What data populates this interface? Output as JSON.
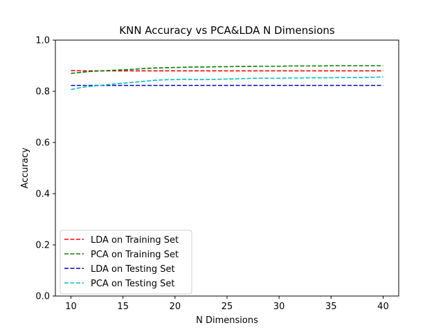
{
  "chart_data": {
    "type": "line",
    "title": "KNN Accuracy vs PCA&LDA N Dimensions",
    "xlabel": "N Dimensions",
    "ylabel": "Accuracy",
    "xlim": [
      8.5,
      41.5
    ],
    "ylim": [
      0.0,
      1.0
    ],
    "xticks": [
      10,
      15,
      20,
      25,
      30,
      35,
      40
    ],
    "xtick_labels": [
      "10",
      "15",
      "20",
      "25",
      "30",
      "35",
      "40"
    ],
    "yticks": [
      0.0,
      0.2,
      0.4,
      0.6,
      0.8,
      1.0
    ],
    "ytick_labels": [
      "0.0",
      "0.2",
      "0.4",
      "0.6",
      "0.8",
      "1.0"
    ],
    "grid": false,
    "legend_position": "lower-left",
    "x": [
      10,
      11,
      12,
      13,
      14,
      15,
      16,
      17,
      18,
      19,
      20,
      21,
      22,
      23,
      24,
      25,
      26,
      27,
      28,
      29,
      30,
      31,
      32,
      33,
      34,
      35,
      36,
      37,
      38,
      39,
      40
    ],
    "series": [
      {
        "name": "LDA on Training Set",
        "color": "#ff0000",
        "values": [
          0.881,
          0.88,
          0.88,
          0.88,
          0.88,
          0.88,
          0.88,
          0.88,
          0.88,
          0.88,
          0.88,
          0.88,
          0.88,
          0.88,
          0.88,
          0.88,
          0.88,
          0.88,
          0.88,
          0.88,
          0.88,
          0.88,
          0.88,
          0.88,
          0.88,
          0.88,
          0.88,
          0.88,
          0.88,
          0.88,
          0.88
        ]
      },
      {
        "name": "PCA on Training Set",
        "color": "#008000",
        "values": [
          0.87,
          0.874,
          0.878,
          0.88,
          0.882,
          0.884,
          0.886,
          0.889,
          0.891,
          0.892,
          0.893,
          0.894,
          0.895,
          0.895,
          0.896,
          0.896,
          0.897,
          0.897,
          0.898,
          0.898,
          0.898,
          0.899,
          0.899,
          0.899,
          0.899,
          0.9,
          0.9,
          0.9,
          0.9,
          0.9,
          0.9
        ]
      },
      {
        "name": "LDA on Testing Set",
        "color": "#0000cc",
        "values": [
          0.823,
          0.823,
          0.823,
          0.823,
          0.823,
          0.823,
          0.823,
          0.823,
          0.823,
          0.823,
          0.823,
          0.823,
          0.823,
          0.823,
          0.823,
          0.823,
          0.823,
          0.823,
          0.823,
          0.823,
          0.823,
          0.823,
          0.823,
          0.823,
          0.823,
          0.823,
          0.823,
          0.823,
          0.823,
          0.823,
          0.823
        ]
      },
      {
        "name": "PCA on Testing Set",
        "color": "#00bfbf",
        "values": [
          0.807,
          0.815,
          0.82,
          0.824,
          0.828,
          0.832,
          0.835,
          0.839,
          0.843,
          0.845,
          0.846,
          0.847,
          0.846,
          0.846,
          0.847,
          0.848,
          0.849,
          0.85,
          0.851,
          0.851,
          0.851,
          0.852,
          0.852,
          0.853,
          0.853,
          0.853,
          0.854,
          0.854,
          0.854,
          0.855,
          0.856
        ]
      }
    ]
  }
}
